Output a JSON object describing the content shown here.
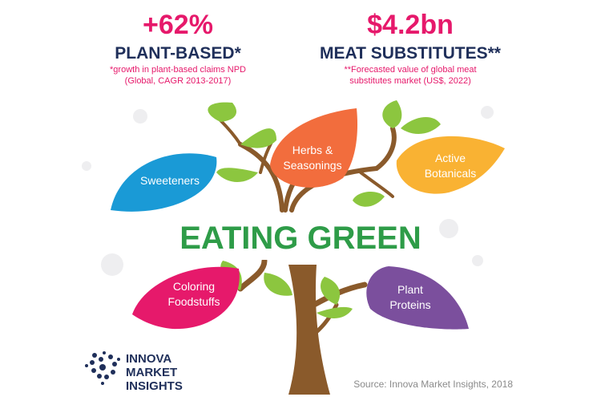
{
  "header": {
    "left": {
      "figure": "+62%",
      "title": "PLANT-BASED*",
      "note": [
        "*growth in plant-based claims NPD",
        "(Global, CAGR 2013-2017)"
      ]
    },
    "right": {
      "figure": "$4.2bn",
      "title": "MEAT SUBSTITUTES**",
      "note": [
        "**Forecasted value of global meat",
        "substitutes market (US$, 2022)"
      ]
    }
  },
  "leaves": [
    {
      "label": [
        "Sweeteners"
      ]
    },
    {
      "label": [
        "Herbs &",
        "Seasonings"
      ]
    },
    {
      "label": [
        "Active",
        "Botanicals"
      ]
    },
    {
      "label": [
        "Coloring",
        "Foodstuffs"
      ]
    },
    {
      "label": [
        "Plant",
        "Proteins"
      ]
    }
  ],
  "headline": "EATING GREEN",
  "logo": [
    "INNOVA",
    "MARKET",
    "INSIGHTS"
  ],
  "source": "Source: Innova Market Insights, 2018"
}
